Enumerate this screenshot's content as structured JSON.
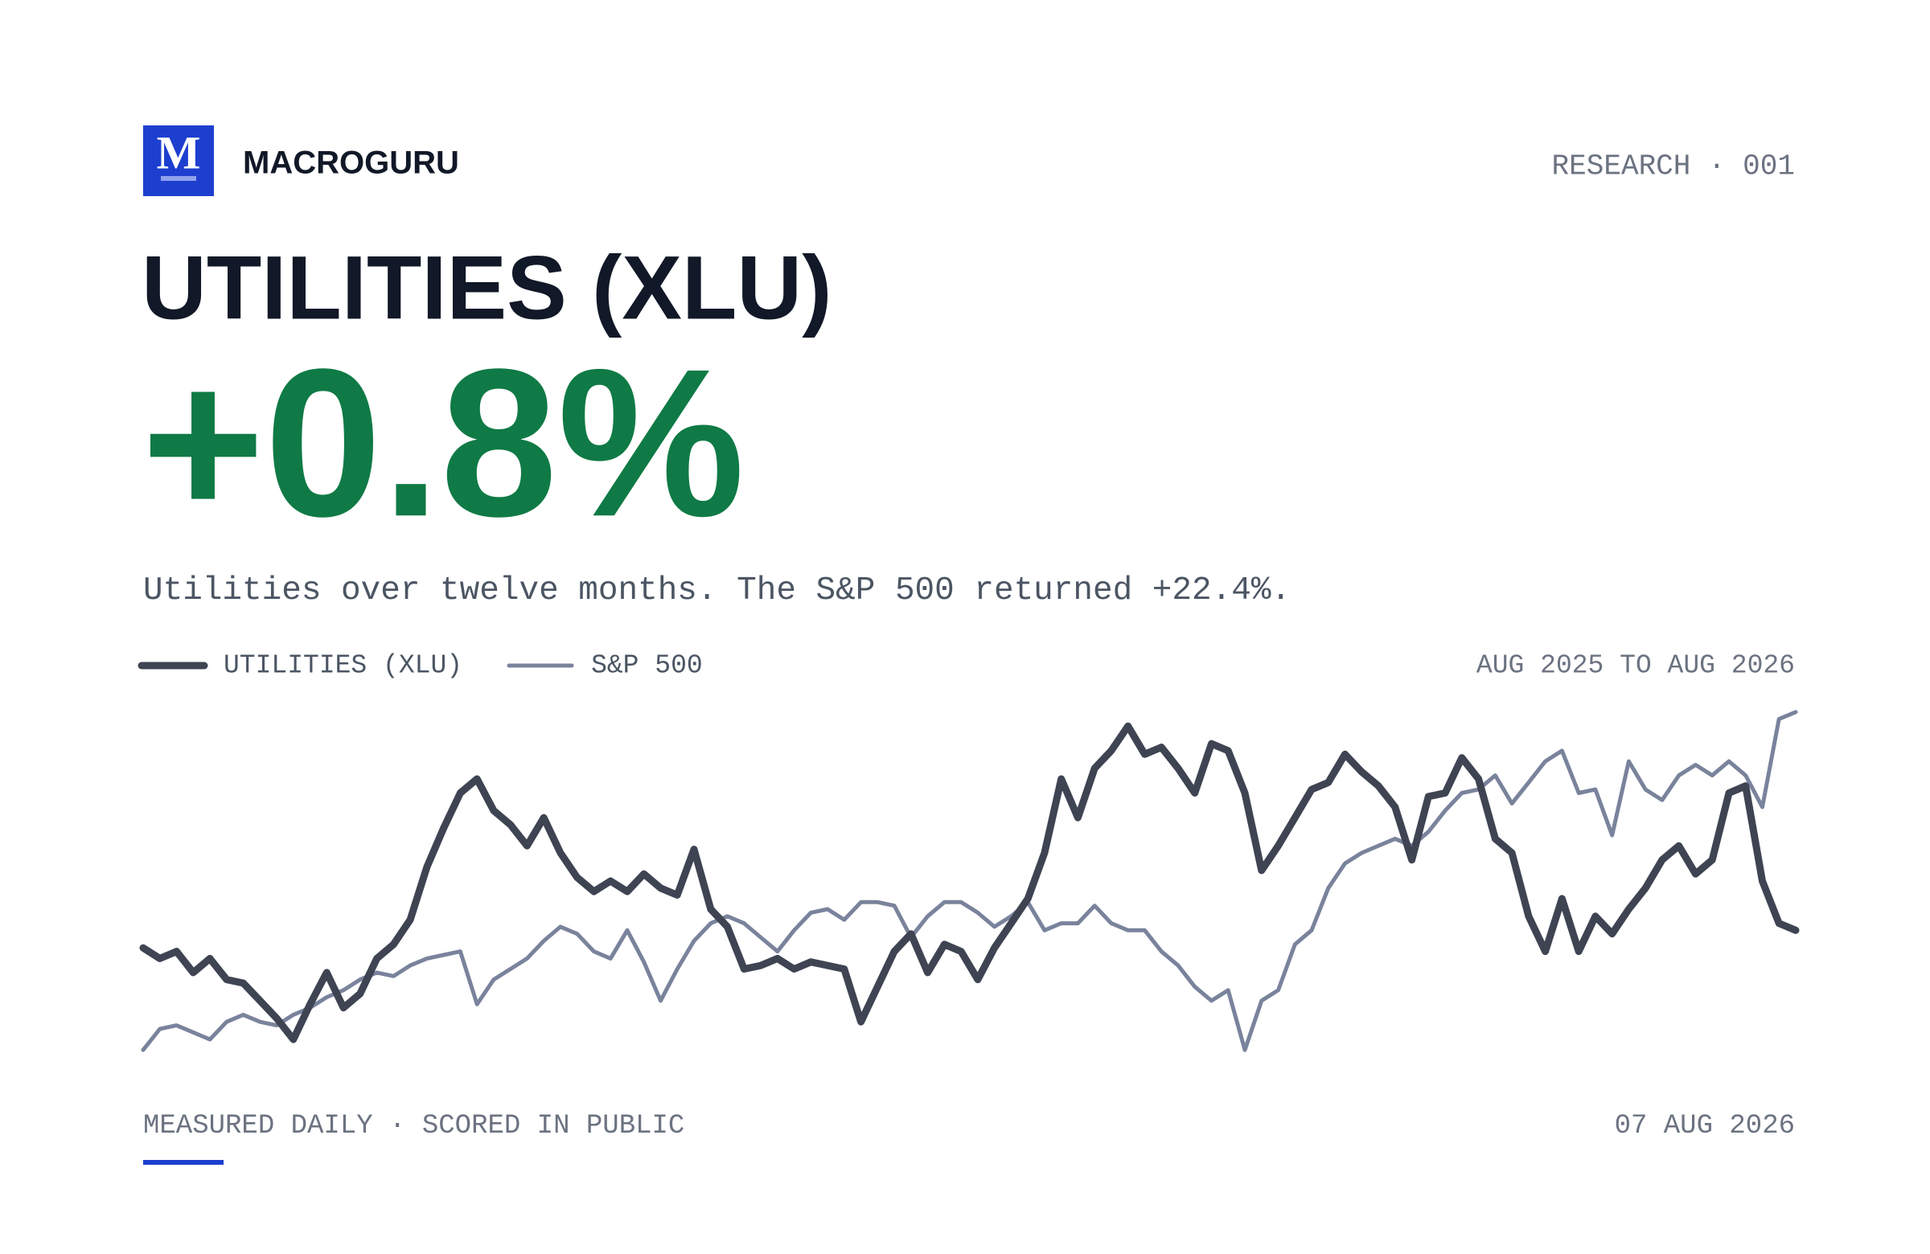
{
  "header": {
    "logo_letter": "M",
    "brand": "MACROGURU",
    "tag": "RESEARCH · 001"
  },
  "chart_data": {
    "type": "line",
    "title": "UTILITIES (XLU)",
    "headline": "+0.8%",
    "subtitle": "Utilities over twelve months. The S&P 500 returned +22.4%.",
    "period": "AUG 2025 TO AUG 2026",
    "ylim": [
      0,
      100
    ],
    "series": [
      {
        "name": "UTILITIES (XLU)",
        "color": "#3f4453",
        "values": [
          31,
          28,
          30,
          24,
          28,
          22,
          21,
          16,
          11,
          5,
          15,
          24,
          14,
          18,
          28,
          32,
          39,
          54,
          65,
          75,
          79,
          70,
          66,
          60,
          68,
          58,
          51,
          47,
          50,
          47,
          52,
          48,
          46,
          59,
          42,
          37,
          25,
          26,
          28,
          25,
          27,
          26,
          25,
          10,
          20,
          30,
          35,
          24,
          32,
          30,
          22,
          31,
          38,
          45,
          58,
          79,
          68,
          82,
          87,
          94,
          86,
          88,
          82,
          75,
          89,
          87,
          75,
          53,
          60,
          68,
          76,
          78,
          86,
          81,
          77,
          71,
          56,
          74,
          75,
          85,
          79,
          62,
          58,
          40,
          30,
          45,
          30,
          40,
          35,
          42,
          48,
          56,
          60,
          52,
          56,
          75,
          77,
          50,
          38,
          36
        ]
      },
      {
        "name": "S&P 500",
        "color": "#7a839c",
        "values": [
          2,
          8,
          9,
          7,
          5,
          10,
          12,
          10,
          9,
          12,
          14,
          17,
          19,
          22,
          24,
          23,
          26,
          28,
          29,
          30,
          15,
          22,
          25,
          28,
          33,
          37,
          35,
          30,
          28,
          36,
          27,
          16,
          25,
          33,
          38,
          40,
          38,
          34,
          30,
          36,
          41,
          42,
          39,
          44,
          44,
          43,
          34,
          40,
          44,
          44,
          41,
          37,
          40,
          44,
          36,
          38,
          38,
          43,
          38,
          36,
          36,
          30,
          26,
          20,
          16,
          19,
          2,
          16,
          19,
          32,
          36,
          48,
          55,
          58,
          60,
          62,
          60,
          64,
          70,
          75,
          76,
          80,
          72,
          78,
          84,
          87,
          75,
          76,
          63,
          84,
          76,
          73,
          80,
          83,
          80,
          84,
          80,
          71,
          96,
          98
        ]
      }
    ]
  },
  "footer": {
    "left": "MEASURED DAILY · SCORED IN PUBLIC",
    "right": "07 AUG 2026"
  }
}
